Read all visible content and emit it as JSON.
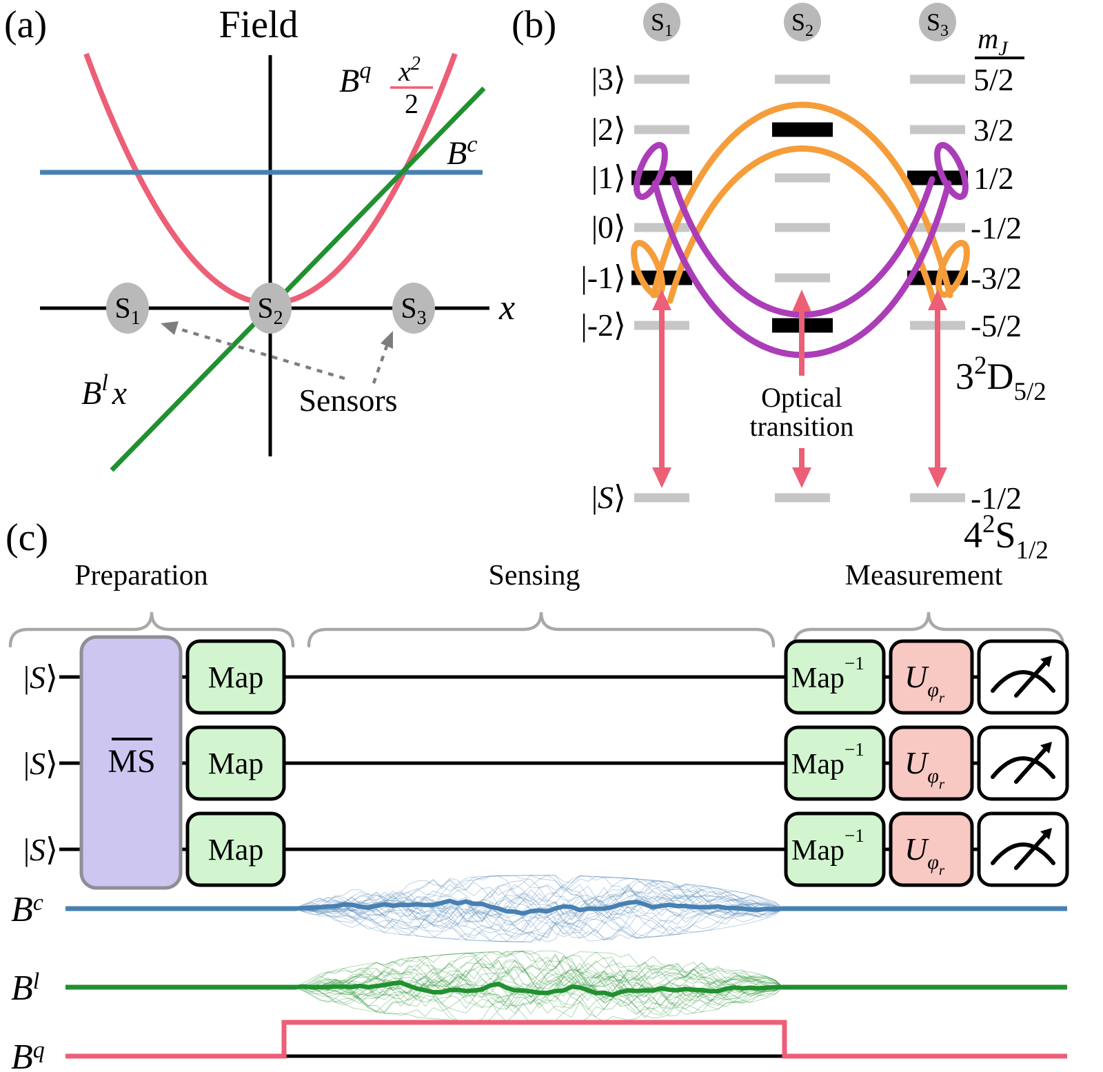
{
  "colors": {
    "pink": "#ec5f76",
    "blue": "#4780b2",
    "green": "#21902f",
    "orange": "#f59d3b",
    "purple": "#ab3db8",
    "gray_bar": "#c6c6c6",
    "black_bar": "#000000",
    "bubble": "#b9b9b9",
    "sensors_text": "#8a8a8a",
    "dashed_arrow": "#7d7d7d",
    "brace": "#a8a8a8",
    "ms_fill": "#ccc6f1",
    "ms_border": "#8e8e96",
    "map_fill": "#d2f5cf",
    "u_fill": "#f8c8c3",
    "meter_fill": "#ffffff",
    "axis": "#000000"
  },
  "panel_a": {
    "tag": "(a)",
    "title": "Field",
    "x_axis_label": "x",
    "bc_label": {
      "base": "B",
      "sup": "c"
    },
    "bq_label": {
      "base": "B",
      "sup": "q",
      "frac_num_base": "x",
      "frac_num_sup": "2",
      "frac_den": "2"
    },
    "bl_label": {
      "base": "B",
      "sup": "l",
      "variable": "x"
    },
    "sensors_label": "Sensors",
    "sensors": [
      {
        "base": "S",
        "sub": "1"
      },
      {
        "base": "S",
        "sub": "2"
      },
      {
        "base": "S",
        "sub": "3"
      }
    ]
  },
  "panel_b": {
    "tag": "(b)",
    "ions": [
      {
        "base": "S",
        "sub": "1"
      },
      {
        "base": "S",
        "sub": "2"
      },
      {
        "base": "S",
        "sub": "3"
      }
    ],
    "mj_header": {
      "base": "m",
      "sub": "J"
    },
    "ket_bar": "|",
    "ket_angle": "⟩",
    "levels": [
      {
        "ket": "3",
        "mj": "5/2"
      },
      {
        "ket": "2",
        "mj": "3/2"
      },
      {
        "ket": "1",
        "mj": "1/2"
      },
      {
        "ket": "0",
        "mj": "-1/2"
      },
      {
        "ket": "-1",
        "mj": "-3/2"
      },
      {
        "ket": "-2",
        "mj": "-5/2"
      }
    ],
    "s_level": {
      "ket": "S",
      "mj": "-1/2"
    },
    "occupied": {
      "S1": [
        "1",
        "-1"
      ],
      "S2": [
        "2",
        "-2"
      ],
      "S3": [
        "1",
        "-1"
      ]
    },
    "optical_label": {
      "line1": "Optical",
      "line2": "transition"
    },
    "term_d": {
      "pre": "3",
      "sup": "2",
      "letter": "D",
      "sub": "5/2"
    },
    "term_s": {
      "pre": "4",
      "sup": "2",
      "letter": "S",
      "sub": "1/2"
    }
  },
  "panel_c": {
    "tag": "(c)",
    "sections": [
      "Preparation",
      "Sensing",
      "Measurement"
    ],
    "input_ket": {
      "bar": "|",
      "letter": "S",
      "angle": "⟩"
    },
    "ms_gate": "MS",
    "map_gate": "Map",
    "map_inv_gate": {
      "base": "Map",
      "sup": "−1"
    },
    "u_gate": {
      "base": "U",
      "sub": "φ",
      "subsub": "r"
    },
    "trace_labels": [
      {
        "base": "B",
        "sup": "c"
      },
      {
        "base": "B",
        "sup": "l"
      },
      {
        "base": "B",
        "sup": "q"
      }
    ]
  }
}
